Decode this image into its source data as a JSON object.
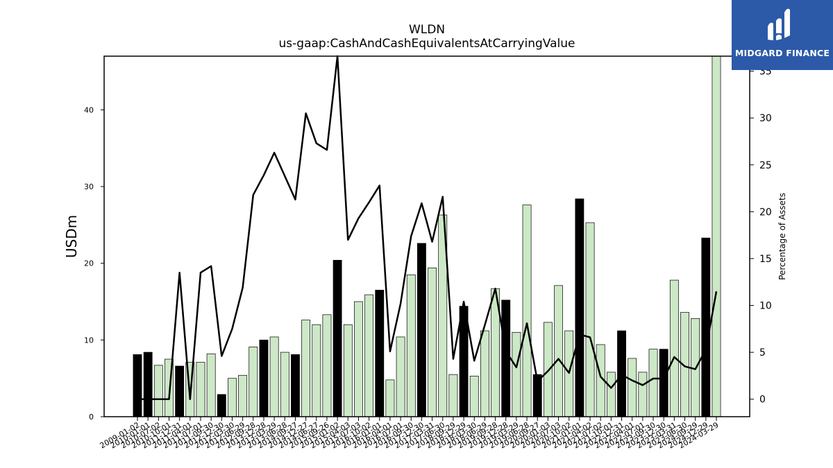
{
  "chart_data": {
    "type": "bar+line",
    "title": "WLDN",
    "subtitle": "us-gaap:CashAndCashEquivalentsAtCarryingValue",
    "ylabel_left": "USDm",
    "ylabel_right": "Percentage of Assets",
    "ylim_left": [
      0,
      47
    ],
    "ylim_right": [
      -1.87,
      36.6
    ],
    "yticks_left": [
      0,
      10,
      20,
      30,
      40
    ],
    "yticks_right": [
      0,
      5,
      10,
      15,
      20,
      25,
      30,
      35
    ],
    "categories": [
      "2009-01-02",
      "2010-01-01",
      "2010-07-02",
      "2010-10-01",
      "2011-12-31",
      "2011-04-01",
      "2011-07-01",
      "2011-09-30",
      "2012-12-30",
      "2012-03-30",
      "2012-06-29",
      "2012-09-28",
      "2013-12-28",
      "2013-03-29",
      "2013-06-28",
      "2014-09-27",
      "2014-12-27",
      "2014-06-27",
      "2015-09-26",
      "2015-01-02",
      "2015-04-03",
      "2015-07-03",
      "2016-10-02",
      "2016-01-01",
      "2016-04-01",
      "2016-07-01",
      "2016-09-30",
      "2017-12-30",
      "2017-03-31",
      "2017-06-30",
      "2018-09-29",
      "2018-12-29",
      "2018-03-30",
      "2018-06-29",
      "2019-09-28",
      "2019-12-28",
      "2019-03-29",
      "2019-06-28",
      "2020-09-27",
      "2020-01-03",
      "2020-07-03",
      "2020-10-02",
      "2021-01-01",
      "2021-04-02",
      "2021-07-02",
      "2021-10-01",
      "2022-12-31",
      "2022-04-01",
      "2022-07-01",
      "2023-09-30",
      "2023-12-30",
      "2023-03-31",
      "2023-06-30",
      "2024-09-29",
      "2024-12-29",
      "2024-03-29"
    ],
    "series": [
      {
        "type": "bar",
        "values": [
          8.1,
          8.4,
          6.7,
          7.5,
          6.6,
          7.1,
          7.1,
          8.2,
          2.9,
          5.0,
          5.4,
          9.1,
          10.0,
          10.4,
          8.4,
          8.1,
          12.6,
          12.0,
          13.3,
          20.4,
          12.0,
          15.0,
          15.9,
          16.5,
          4.8,
          10.4,
          18.5,
          22.6,
          19.4,
          26.3,
          5.5,
          14.4,
          5.3,
          11.2,
          16.7,
          15.2,
          11.0,
          27.6,
          5.5,
          12.3,
          17.1,
          11.2,
          28.4,
          25.3,
          9.4,
          5.8,
          11.2,
          7.6,
          5.8,
          8.8,
          8.8,
          17.8,
          13.6,
          12.8,
          23.3,
          47.5
        ],
        "highlight": [
          1,
          1,
          0,
          0,
          1,
          0,
          0,
          0,
          1,
          0,
          0,
          0,
          1,
          0,
          0,
          1,
          0,
          0,
          0,
          1,
          0,
          0,
          0,
          1,
          0,
          0,
          0,
          1,
          0,
          0,
          0,
          1,
          0,
          0,
          0,
          1,
          0,
          0,
          1,
          0,
          0,
          0,
          1,
          0,
          0,
          0,
          1,
          0,
          0,
          0,
          1,
          0,
          0,
          0,
          1,
          0
        ]
      },
      {
        "type": "line",
        "values": [
          0.0,
          0.0,
          0.0,
          0.0,
          13.5,
          0.0,
          13.5,
          14.2,
          4.6,
          7.5,
          11.9,
          21.8,
          23.9,
          26.3,
          23.8,
          21.3,
          30.5,
          27.3,
          26.6,
          37.0,
          17.0,
          19.3,
          21.0,
          22.8,
          5.1,
          10.2,
          17.4,
          20.9,
          16.8,
          21.6,
          4.3,
          10.4,
          4.1,
          7.9,
          11.8,
          5.1,
          3.4,
          8.1,
          1.9,
          3.0,
          4.3,
          2.8,
          6.9,
          6.6,
          2.4,
          1.2,
          2.6,
          2.0,
          1.5,
          2.2,
          2.2,
          4.5,
          3.5,
          3.2,
          5.3,
          11.5
        ]
      }
    ],
    "colors": {
      "bar_fill": "#cce8c6",
      "bar_highlight": "#000000",
      "bar_edge": "#000000",
      "line": "#000000"
    },
    "legend": "none",
    "grid": false
  },
  "watermark": {
    "brand": "MIDGARD FINANCE",
    "color": "#2c5aa8"
  }
}
